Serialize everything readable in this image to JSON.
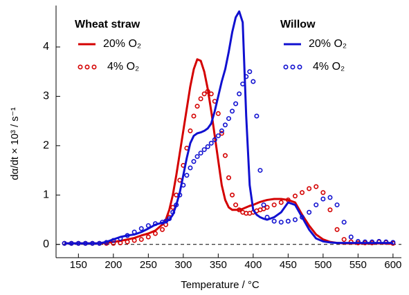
{
  "chart_data": {
    "type": "line",
    "x_label": "Temperature / °C",
    "y_label": "dα/dt × 10³ / s⁻¹",
    "legend_titles": [
      "Wheat straw",
      "Willow"
    ],
    "x": [
      130,
      140,
      150,
      160,
      170,
      180,
      190,
      200,
      210,
      220,
      230,
      240,
      250,
      260,
      270,
      275,
      280,
      285,
      290,
      295,
      300,
      305,
      310,
      315,
      320,
      325,
      330,
      335,
      340,
      345,
      350,
      355,
      360,
      365,
      370,
      375,
      380,
      385,
      390,
      395,
      400,
      405,
      410,
      415,
      420,
      430,
      440,
      450,
      460,
      470,
      480,
      490,
      500,
      510,
      520,
      530,
      540,
      550,
      560,
      570,
      580,
      590,
      600
    ],
    "series": [
      {
        "name": "20% O₂",
        "color": "#d40000",
        "style": "line",
        "values": [
          0.02,
          0.02,
          0.02,
          0.02,
          0.02,
          0.02,
          0.03,
          0.05,
          0.07,
          0.1,
          0.13,
          0.18,
          0.22,
          0.28,
          0.4,
          0.5,
          0.7,
          1.0,
          1.4,
          1.85,
          2.3,
          2.75,
          3.2,
          3.55,
          3.75,
          3.72,
          3.5,
          3.15,
          2.7,
          2.2,
          1.7,
          1.2,
          0.9,
          0.75,
          0.7,
          0.7,
          0.7,
          0.72,
          0.75,
          0.78,
          0.8,
          0.83,
          0.86,
          0.88,
          0.9,
          0.92,
          0.92,
          0.9,
          0.85,
          0.6,
          0.38,
          0.2,
          0.1,
          0.05,
          0.03,
          0.02,
          0.02,
          0.02,
          0.02,
          0.02,
          0.02,
          0.02,
          0.01
        ]
      },
      {
        "name": "4% O₂",
        "color": "#d40000",
        "style": "markers",
        "values": [
          0.02,
          0.02,
          0.02,
          0.02,
          0.02,
          0.02,
          0.02,
          0.02,
          0.03,
          0.05,
          0.08,
          0.1,
          0.15,
          0.22,
          0.3,
          0.4,
          0.55,
          0.75,
          1.0,
          1.3,
          1.6,
          1.95,
          2.3,
          2.6,
          2.8,
          2.95,
          3.05,
          3.1,
          3.05,
          2.9,
          2.65,
          2.25,
          1.8,
          1.35,
          1.0,
          0.8,
          0.7,
          0.65,
          0.63,
          0.63,
          0.65,
          0.68,
          0.7,
          0.72,
          0.75,
          0.8,
          0.85,
          0.9,
          0.98,
          1.05,
          1.13,
          1.17,
          1.05,
          0.7,
          0.3,
          0.1,
          0.05,
          0.03,
          0.03,
          0.03,
          0.05,
          0.04,
          0.02
        ]
      },
      {
        "name": "20% O₂",
        "color": "#1010d0",
        "style": "line",
        "values": [
          0.02,
          0.02,
          0.02,
          0.02,
          0.02,
          0.02,
          0.05,
          0.1,
          0.15,
          0.18,
          0.2,
          0.25,
          0.32,
          0.4,
          0.44,
          0.46,
          0.5,
          0.6,
          0.8,
          1.05,
          1.4,
          1.75,
          2.05,
          2.2,
          2.25,
          2.27,
          2.3,
          2.35,
          2.45,
          2.7,
          3.0,
          3.3,
          3.55,
          3.9,
          4.3,
          4.6,
          4.72,
          4.5,
          2.6,
          1.2,
          0.7,
          0.6,
          0.55,
          0.52,
          0.5,
          0.55,
          0.65,
          0.85,
          0.8,
          0.55,
          0.3,
          0.12,
          0.06,
          0.04,
          0.03,
          0.03,
          0.03,
          0.03,
          0.03,
          0.03,
          0.03,
          0.03,
          0.03
        ]
      },
      {
        "name": "4% O₂",
        "color": "#1010d0",
        "style": "markers",
        "values": [
          0.02,
          0.02,
          0.02,
          0.02,
          0.02,
          0.02,
          0.04,
          0.08,
          0.12,
          0.18,
          0.25,
          0.32,
          0.38,
          0.42,
          0.45,
          0.47,
          0.52,
          0.65,
          0.8,
          1.0,
          1.2,
          1.4,
          1.55,
          1.68,
          1.78,
          1.85,
          1.92,
          1.98,
          2.05,
          2.12,
          2.2,
          2.3,
          2.42,
          2.55,
          2.7,
          2.85,
          3.05,
          3.25,
          3.4,
          3.5,
          3.3,
          2.6,
          1.5,
          0.8,
          0.55,
          0.47,
          0.45,
          0.47,
          0.5,
          0.55,
          0.65,
          0.8,
          0.92,
          0.95,
          0.8,
          0.45,
          0.15,
          0.06,
          0.05,
          0.05,
          0.06,
          0.05,
          0.04
        ]
      }
    ],
    "xlim": [
      118,
      612
    ],
    "xticks": [
      150,
      200,
      250,
      300,
      350,
      400,
      450,
      500,
      550,
      600
    ],
    "ylim": [
      -0.27,
      4.84
    ],
    "yticks": [
      0,
      1,
      2,
      3,
      4
    ],
    "baseline": 0
  }
}
